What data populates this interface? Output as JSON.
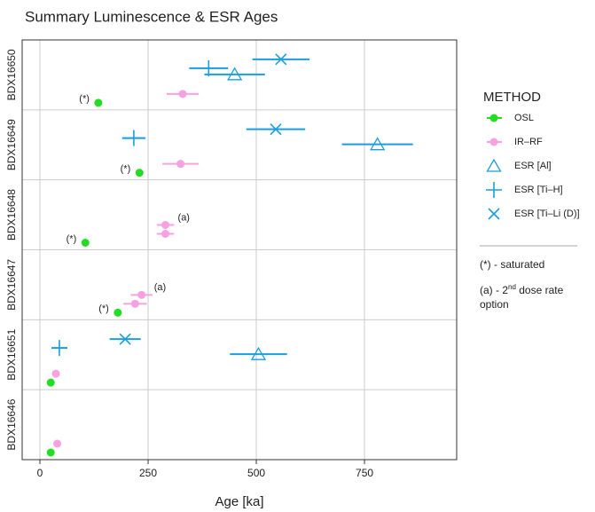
{
  "chart_data": {
    "type": "scatter",
    "title": "Summary Luminescence & ESR Ages",
    "x_label": "Age [ka]",
    "categories": [
      "BDX16650",
      "BDX16649",
      "BDX16648",
      "BDX16647",
      "BDX16651",
      "BDX16646"
    ],
    "xlim": [
      -41,
      963
    ],
    "xticks": [
      0,
      250,
      500,
      750
    ],
    "grid": true,
    "legend_title": "METHOD",
    "legend_position": "right",
    "series": [
      {
        "name": "OSL",
        "color": "#22dd22",
        "marker": "circle",
        "categories": [
          "BDX16650",
          "BDX16649",
          "BDX16648",
          "BDX16647",
          "BDX16651",
          "BDX16646"
        ],
        "values": [
          135,
          230,
          105,
          180,
          25,
          25
        ],
        "notes": [
          "(*)",
          "(*)",
          "(*)",
          "(*)",
          null,
          null
        ]
      },
      {
        "name": "IR–RF",
        "color": "#f7a0e2",
        "marker": "circle",
        "categories": [
          "BDX16650",
          "BDX16649",
          "BDX16648",
          "BDX16648",
          "BDX16647",
          "BDX16647",
          "BDX16651",
          "BDX16646"
        ],
        "values": [
          330,
          325,
          290,
          290,
          220,
          235,
          37,
          40
        ],
        "errors": [
          37,
          42,
          20,
          20,
          27,
          25,
          null,
          null
        ],
        "notes": [
          null,
          null,
          null,
          "(a)",
          null,
          "(a)",
          null,
          null
        ]
      },
      {
        "name": "ESR [Al]",
        "color": "#1a9ee0",
        "marker": "triangle",
        "categories": [
          "BDX16650",
          "BDX16649",
          "BDX16651"
        ],
        "values": [
          450,
          780,
          505
        ],
        "errors": [
          70,
          82,
          66
        ]
      },
      {
        "name": "ESR [Ti–H]",
        "color": "#1a9ee0",
        "marker": "plus",
        "categories": [
          "BDX16650",
          "BDX16649",
          "BDX16651"
        ],
        "values": [
          390,
          217,
          45
        ],
        "errors": [
          45,
          27,
          18
        ]
      },
      {
        "name": "ESR [Ti–Li (D)]",
        "color": "#1a9ee0",
        "marker": "cross",
        "categories": [
          "BDX16650",
          "BDX16649",
          "BDX16651"
        ],
        "values": [
          557,
          545,
          197
        ],
        "errors": [
          66,
          68,
          36
        ]
      }
    ],
    "legend_notes": [
      {
        "text": "(*) - saturated"
      },
      {
        "text": "(a) - 2",
        "sup": "nd",
        "after": " dose rate option"
      }
    ]
  }
}
